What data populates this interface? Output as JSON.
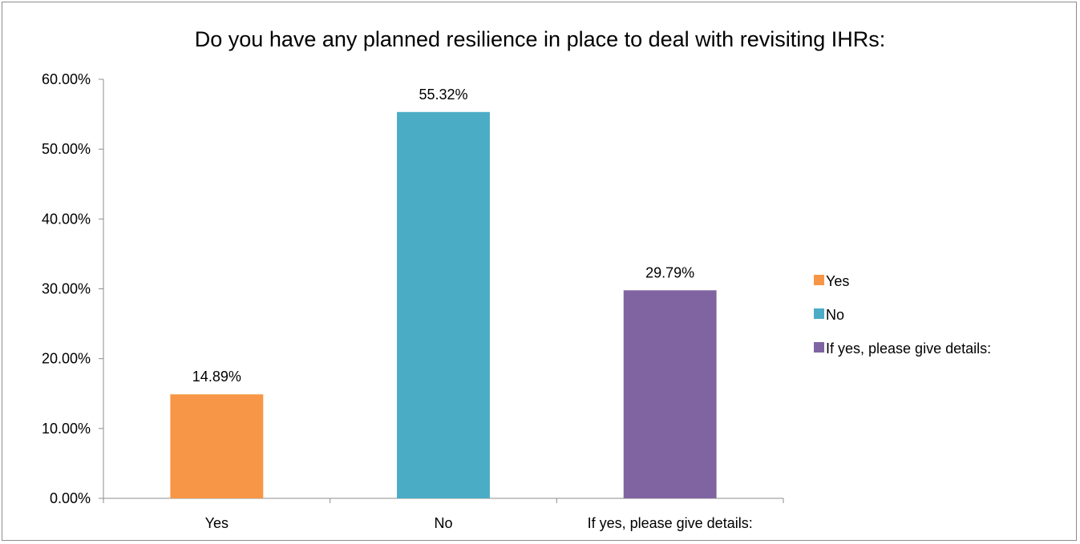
{
  "chart_data": {
    "type": "bar",
    "title": "Do you have any planned resilience in place to deal with revisiting IHRs:",
    "categories": [
      "Yes",
      "No",
      "If yes, please give details:"
    ],
    "values": [
      14.89,
      55.32,
      29.79
    ],
    "data_labels": [
      "14.89%",
      "55.32%",
      "29.79%"
    ],
    "colors": [
      "#f79646",
      "#4bacc6",
      "#8064a2"
    ],
    "y_ticks": [
      0,
      10,
      20,
      30,
      40,
      50,
      60
    ],
    "y_tick_labels": [
      "0.00%",
      "10.00%",
      "20.00%",
      "30.00%",
      "40.00%",
      "50.00%",
      "60.00%"
    ],
    "ylim": [
      0,
      60
    ],
    "xlabel": "",
    "ylabel": "",
    "grid": false,
    "legend": {
      "position": "right",
      "entries": [
        "Yes",
        "No",
        "If yes, please give details:"
      ]
    }
  }
}
